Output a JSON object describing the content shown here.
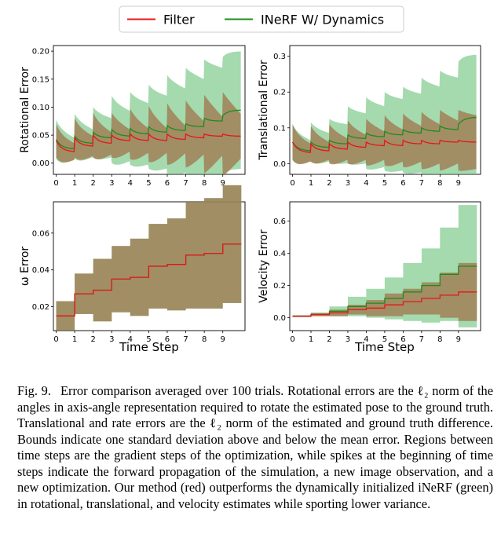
{
  "legend": {
    "entries": [
      {
        "label": "Filter",
        "color": "#e8141a"
      },
      {
        "label": "INeRF W/ Dynamics",
        "color": "#1e8c1e"
      }
    ]
  },
  "colors": {
    "filter_line": "#e8141a",
    "filter_fill": "#f08c8c",
    "inerf_line": "#1e8c1e",
    "inerf_fill": "#6cc47c",
    "overlap_fill": "#a07850"
  },
  "chart_data": [
    {
      "type": "line",
      "id": "rotational",
      "ylabel": "Rotational Error",
      "xlabel": "",
      "xticks": [
        "0",
        "1",
        "2",
        "3",
        "4",
        "5",
        "6",
        "7",
        "8",
        "9"
      ],
      "xlim": [
        -0.15,
        10.2
      ],
      "ylim": [
        -0.02,
        0.21
      ],
      "yticks": [
        0.0,
        0.05,
        0.1,
        0.15,
        0.2
      ],
      "ytick_labels": [
        "0.00",
        "0.05",
        "0.10",
        "0.15",
        "0.20"
      ],
      "pattern": "decay",
      "series": [
        {
          "name": "Filter",
          "start": [
            0.04,
            0.045,
            0.05,
            0.05,
            0.052,
            0.052,
            0.052,
            0.052,
            0.052,
            0.052
          ],
          "end": [
            0.02,
            0.03,
            0.035,
            0.04,
            0.04,
            0.04,
            0.042,
            0.045,
            0.048,
            0.048
          ],
          "band_start": [
            0.03,
            0.035,
            0.04,
            0.04,
            0.045,
            0.05,
            0.055,
            0.06,
            0.07,
            0.075
          ],
          "band_end": [
            0.015,
            0.018,
            0.02,
            0.02,
            0.022,
            0.022,
            0.025,
            0.03,
            0.035,
            0.04
          ]
        },
        {
          "name": "INeRF W/ Dynamics",
          "start": [
            0.042,
            0.048,
            0.055,
            0.06,
            0.062,
            0.065,
            0.067,
            0.07,
            0.08,
            0.085
          ],
          "end": [
            0.025,
            0.035,
            0.045,
            0.048,
            0.052,
            0.055,
            0.058,
            0.065,
            0.075,
            0.095
          ],
          "band_start": [
            0.035,
            0.04,
            0.045,
            0.06,
            0.065,
            0.075,
            0.09,
            0.1,
            0.105,
            0.105
          ],
          "band_end": [
            0.02,
            0.025,
            0.035,
            0.045,
            0.055,
            0.065,
            0.075,
            0.085,
            0.095,
            0.105
          ]
        }
      ]
    },
    {
      "type": "line",
      "id": "translational",
      "ylabel": "Translational Error",
      "xlabel": "",
      "xticks": [
        "0",
        "1",
        "2",
        "3",
        "4",
        "5",
        "6",
        "7",
        "8",
        "9"
      ],
      "xlim": [
        -0.15,
        10.2
      ],
      "ylim": [
        -0.03,
        0.33
      ],
      "yticks": [
        0.0,
        0.1,
        0.2,
        0.3
      ],
      "ytick_labels": [
        "0.0",
        "0.1",
        "0.2",
        "0.3"
      ],
      "pattern": "decay",
      "series": [
        {
          "name": "Filter",
          "start": [
            0.06,
            0.055,
            0.055,
            0.06,
            0.06,
            0.065,
            0.065,
            0.065,
            0.065,
            0.065
          ],
          "end": [
            0.03,
            0.035,
            0.04,
            0.045,
            0.05,
            0.05,
            0.055,
            0.055,
            0.06,
            0.06
          ],
          "band_start": [
            0.05,
            0.05,
            0.055,
            0.06,
            0.065,
            0.07,
            0.075,
            0.08,
            0.085,
            0.085
          ],
          "band_end": [
            0.025,
            0.025,
            0.03,
            0.035,
            0.04,
            0.045,
            0.05,
            0.055,
            0.06,
            0.075
          ]
        },
        {
          "name": "INeRF W/ Dynamics",
          "start": [
            0.06,
            0.06,
            0.065,
            0.08,
            0.085,
            0.09,
            0.095,
            0.1,
            0.105,
            0.11
          ],
          "end": [
            0.035,
            0.045,
            0.055,
            0.07,
            0.075,
            0.08,
            0.085,
            0.09,
            0.095,
            0.13
          ],
          "band_start": [
            0.05,
            0.055,
            0.06,
            0.08,
            0.1,
            0.11,
            0.12,
            0.14,
            0.155,
            0.175
          ],
          "band_end": [
            0.03,
            0.04,
            0.055,
            0.07,
            0.085,
            0.1,
            0.11,
            0.125,
            0.145,
            0.175
          ]
        }
      ]
    },
    {
      "type": "line",
      "id": "omega",
      "ylabel": "ω Error",
      "xlabel": "Time Step",
      "xticks": [
        "0",
        "1",
        "2",
        "3",
        "4",
        "5",
        "6",
        "7",
        "8",
        "9"
      ],
      "xlim": [
        -0.15,
        10.2
      ],
      "ylim": [
        0.007,
        0.077
      ],
      "yticks": [
        0.02,
        0.04,
        0.06
      ],
      "ytick_labels": [
        "0.02",
        "0.04",
        "0.06"
      ],
      "pattern": "step",
      "series": [
        {
          "name": "Filter",
          "start": [
            0.015,
            0.027,
            0.029,
            0.035,
            0.036,
            0.042,
            0.043,
            0.048,
            0.049,
            0.054
          ],
          "end": [
            0.015,
            0.027,
            0.029,
            0.035,
            0.036,
            0.042,
            0.043,
            0.048,
            0.049,
            0.054
          ],
          "band_start": [
            0.008,
            0.011,
            0.017,
            0.018,
            0.021,
            0.023,
            0.025,
            0.029,
            0.03,
            0.032
          ],
          "band_end": [
            0.008,
            0.011,
            0.017,
            0.018,
            0.021,
            0.023,
            0.025,
            0.029,
            0.03,
            0.032
          ]
        },
        {
          "name": "INeRF W/ Dynamics",
          "start": [
            0.015,
            0.027,
            0.029,
            0.035,
            0.036,
            0.042,
            0.043,
            0.048,
            0.049,
            0.054
          ],
          "end": [
            0.015,
            0.027,
            0.029,
            0.035,
            0.036,
            0.042,
            0.043,
            0.048,
            0.049,
            0.054
          ],
          "band_start": [
            0.008,
            0.011,
            0.017,
            0.018,
            0.021,
            0.023,
            0.025,
            0.029,
            0.03,
            0.032
          ],
          "band_end": [
            0.008,
            0.011,
            0.017,
            0.018,
            0.021,
            0.023,
            0.025,
            0.029,
            0.03,
            0.032
          ]
        }
      ]
    },
    {
      "type": "line",
      "id": "velocity",
      "ylabel": "Velocity Error",
      "xlabel": "Time Step",
      "xticks": [
        "0",
        "1",
        "2",
        "3",
        "4",
        "5",
        "6",
        "7",
        "8",
        "9"
      ],
      "xlim": [
        -0.15,
        10.2
      ],
      "ylim": [
        -0.08,
        0.72
      ],
      "yticks": [
        0.0,
        0.2,
        0.4,
        0.6
      ],
      "ytick_labels": [
        "0.0",
        "0.2",
        "0.4",
        "0.6"
      ],
      "pattern": "step",
      "series": [
        {
          "name": "Filter",
          "start": [
            0.01,
            0.02,
            0.03,
            0.05,
            0.06,
            0.08,
            0.1,
            0.12,
            0.14,
            0.16
          ],
          "end": [
            0.01,
            0.02,
            0.03,
            0.05,
            0.06,
            0.08,
            0.1,
            0.12,
            0.14,
            0.16
          ],
          "band_start": [
            0.005,
            0.01,
            0.02,
            0.03,
            0.05,
            0.07,
            0.08,
            0.1,
            0.14,
            0.18
          ],
          "band_end": [
            0.005,
            0.01,
            0.02,
            0.03,
            0.05,
            0.07,
            0.08,
            0.1,
            0.14,
            0.18
          ]
        },
        {
          "name": "INeRF W/ Dynamics",
          "start": [
            0.01,
            0.02,
            0.04,
            0.07,
            0.09,
            0.12,
            0.16,
            0.2,
            0.27,
            0.32
          ],
          "end": [
            0.01,
            0.02,
            0.04,
            0.07,
            0.09,
            0.12,
            0.16,
            0.2,
            0.27,
            0.32
          ],
          "band_start": [
            0.005,
            0.01,
            0.03,
            0.06,
            0.09,
            0.13,
            0.18,
            0.23,
            0.29,
            0.38
          ],
          "band_end": [
            0.005,
            0.01,
            0.03,
            0.06,
            0.09,
            0.13,
            0.18,
            0.23,
            0.29,
            0.38
          ]
        }
      ]
    }
  ],
  "caption": {
    "label": "Fig. 9.",
    "text": "Error comparison averaged over 100 trials. Rotational errors are the ℓ₂ norm of the angles in axis-angle representation required to rotate the estimated pose to the ground truth. Translational and rate errors are the ℓ₂ norm of the estimated and ground truth difference. Bounds indicate one standard deviation above and below the mean error. Regions between time steps are the gradient steps of the optimization, while spikes at the beginning of time steps indicate the forward propagation of the simulation, a new image observation, and a new optimization. Our method (red) outperforms the dynamically initialized iNeRF (green) in rotational, translational, and velocity estimates while sporting lower variance."
  }
}
